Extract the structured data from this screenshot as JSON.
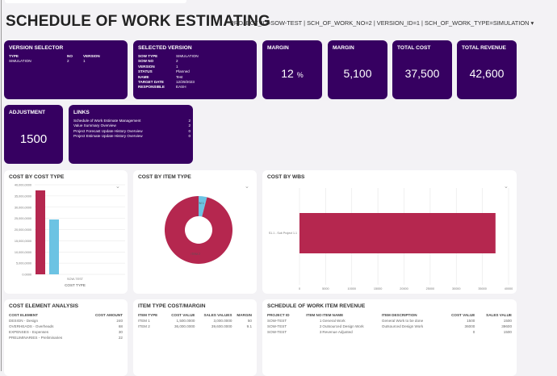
{
  "header": {
    "title": "SCHEDULE OF WORK ESTIMATING",
    "filter": "PROJECT_ID=SOW-TEST | SCH_OF_WORK_NO=2 | VERSION_ID=1 | SCH_OF_WORK_TYPE=SIMULATION ▾"
  },
  "version_selector": {
    "title": "VERSION SELECTOR",
    "columns": [
      "TYPE",
      "NO",
      "VERSION"
    ],
    "rows": [
      [
        "SIMULATION",
        "2",
        "1"
      ]
    ]
  },
  "selected_version": {
    "title": "SELECTED VERSION",
    "fields": [
      {
        "label": "SOW TYPE",
        "value": "SIMULATION"
      },
      {
        "label": "SOW NO",
        "value": "2"
      },
      {
        "label": "VERSION",
        "value": "1"
      },
      {
        "label": "STATUS",
        "value": "Planned"
      },
      {
        "label": "NAME",
        "value": "Test"
      },
      {
        "label": "TARGET DATE",
        "value": "12/29/2023"
      },
      {
        "label": "RESPONSIBLE",
        "value": "EASH"
      }
    ]
  },
  "kpis": [
    {
      "title": "MARGIN",
      "value": "12",
      "unit": "%"
    },
    {
      "title": "MARGIN",
      "value": "5,100"
    },
    {
      "title": "TOTAL COST",
      "value": "37,500"
    },
    {
      "title": "TOTAL REVENUE",
      "value": "42,600"
    }
  ],
  "adjustment": {
    "title": "ADJUSTMENT",
    "value": "1500"
  },
  "links": {
    "title": "LINKS",
    "items": [
      {
        "label": "Schedule of Work Estimate Management",
        "count": "2"
      },
      {
        "label": "Value Summary Overview",
        "count": "2"
      },
      {
        "label": "Project Forecast Update History Overview",
        "count": "0"
      },
      {
        "label": "Project Estimate Update History Overview",
        "count": "0"
      }
    ]
  },
  "colors": {
    "card": "#360061",
    "crimson": "#b5274f",
    "blue": "#6cc3e3"
  },
  "chart_data": [
    {
      "type": "bar",
      "title": "COST BY COST TYPE",
      "categories": [
        "SOW-TEST"
      ],
      "xlabel": "COST TYPE",
      "ylim": [
        0,
        40000000
      ],
      "yticks": [
        "0.0000",
        "5,000,0000",
        "10,000,0000",
        "15,000,0000",
        "20,000,0000",
        "25,000,0000",
        "30,000,0000",
        "35,000,0000",
        "40,000,0000"
      ],
      "series": [
        {
          "values": [
            37500000
          ],
          "color": "#b5274f"
        },
        {
          "values": [
            24500000
          ],
          "color": "#6cc3e3"
        }
      ],
      "grid": true
    },
    {
      "type": "pie",
      "title": "COST BY ITEM TYPE",
      "donut": true,
      "slices": [
        {
          "label": "ITEM 1",
          "value": 1500,
          "color": "#6cc3e3"
        },
        {
          "label": "ITEM 2",
          "value": 36000,
          "color": "#b5274f"
        }
      ]
    },
    {
      "type": "bar",
      "orientation": "horizontal",
      "title": "COST BY WBS",
      "categories": [
        "S1.1 - Sub Project 1.1"
      ],
      "values": [
        37500
      ],
      "xlim": [
        0,
        40000
      ],
      "xticks": [
        "0",
        "5000",
        "10000",
        "15000",
        "20000",
        "25000",
        "30000",
        "35000",
        "40000"
      ],
      "grid": true,
      "color": "#b5274f"
    }
  ],
  "cost_element": {
    "title": "COST ELEMENT ANALYSIS",
    "columns": [
      "COST ELEMENT",
      "COST AMOUNT"
    ],
    "rows": [
      [
        "DESIGN - Design",
        "240"
      ],
      [
        "OVERHEADS - Overheads",
        "68"
      ],
      [
        "EXPENSES - Expenses",
        "30"
      ],
      [
        "PRELIMINARIES - Preliminaries",
        "22"
      ]
    ]
  },
  "item_type": {
    "title": "ITEM TYPE COST/MARGIN",
    "columns": [
      "ITEM TYPE",
      "COST VALUE",
      "SALES VALUES",
      "MARGIN"
    ],
    "rows": [
      [
        "ITEM 1",
        "1,500.0000",
        "3,000.0000",
        "50"
      ],
      [
        "ITEM 2",
        "36,000.0000",
        "39,600.0000",
        "9.1"
      ]
    ]
  },
  "revenue": {
    "title": "SCHEDULE OF WORK ITEM REVENUE",
    "columns": [
      "PROJECT ID",
      "ITEM NO",
      "ITEM NAME",
      "ITEM DESCRIPTION",
      "COST VALUE",
      "SALES VALUE"
    ],
    "rows": [
      [
        "SOW-TEST",
        "1",
        "General Work",
        "General Work to be done",
        "1500",
        "1500"
      ],
      [
        "SOW-TEST",
        "2",
        "Outsourced Design Work",
        "Outsourced Design Work",
        "36000",
        "39600"
      ],
      [
        "SOW-TEST",
        "3",
        "Revenue Adjusted",
        "",
        "0",
        "1500"
      ]
    ]
  }
}
